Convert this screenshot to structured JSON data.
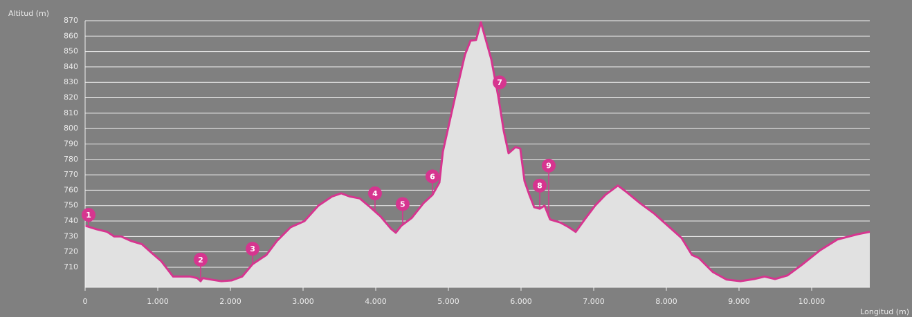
{
  "chart_data": {
    "type": "area",
    "y_label": "Altitud (m)",
    "x_label": "Longitud (m)",
    "xlim": [
      0,
      10800
    ],
    "ylim": [
      697,
      870
    ],
    "xticks": [
      0,
      {
        "value": 1000,
        "label": "1.000"
      },
      {
        "value": 2000,
        "label": "2.000"
      },
      {
        "value": 3000,
        "label": "3.000"
      },
      {
        "value": 4000,
        "label": "4.000"
      },
      {
        "value": 5000,
        "label": "5.000"
      },
      {
        "value": 6000,
        "label": "6.000"
      },
      {
        "value": 7000,
        "label": "7.000"
      },
      {
        "value": 8000,
        "label": "8.000"
      },
      {
        "value": 9000,
        "label": "9.000"
      },
      {
        "value": 10000,
        "label": "10.000"
      }
    ],
    "yticks": [
      710,
      720,
      730,
      740,
      750,
      760,
      770,
      780,
      790,
      800,
      810,
      820,
      830,
      840,
      850,
      860,
      870
    ],
    "grid": true,
    "series": [
      {
        "color": "#d6358f",
        "fill": "#e1e1e1",
        "x": [
          0,
          162,
          305,
          400,
          495,
          638,
          781,
          924,
          1048,
          1162,
          1210,
          1352,
          1448,
          1543,
          1590,
          1619,
          1733,
          1876,
          2019,
          2162,
          2305,
          2495,
          2638,
          2829,
          3019,
          3210,
          3400,
          3524,
          3638,
          3781,
          3924,
          4067,
          4210,
          4276,
          4352,
          4495,
          4657,
          4781,
          4876,
          4924,
          5019,
          5114,
          5229,
          5305,
          5381,
          5448,
          5495,
          5590,
          5686,
          5762,
          5829,
          5924,
          5990,
          6048,
          6114,
          6181,
          6257,
          6324,
          6400,
          6543,
          6657,
          6752,
          6876,
          7019,
          7162,
          7333,
          7448,
          7638,
          7829,
          8019,
          8210,
          8352,
          8448,
          8638,
          8829,
          9019,
          9210,
          9352,
          9495,
          9667,
          9876,
          10114,
          10352,
          10638,
          10800
        ],
        "values": [
          737,
          734.6,
          733,
          730,
          730,
          727,
          725,
          719,
          714,
          707,
          704,
          704,
          704,
          703,
          701,
          703,
          702,
          701,
          701.5,
          704,
          712,
          718,
          727,
          736,
          740,
          750,
          756,
          758,
          756,
          754.7,
          749,
          743,
          735,
          732.4,
          737,
          742,
          751.6,
          757,
          765,
          785,
          805,
          825,
          848,
          857,
          857.5,
          869,
          861,
          845,
          821,
          798.5,
          784,
          788,
          787,
          766,
          757,
          749,
          748,
          750,
          741,
          739,
          736,
          733,
          741,
          750,
          757,
          763,
          759,
          751.6,
          745,
          737,
          729,
          718,
          716,
          707,
          702,
          701,
          702.4,
          704,
          702.4,
          704.7,
          712,
          721,
          728,
          731.5,
          733
        ]
      }
    ],
    "annotations": [
      {
        "label": "1",
        "x": 48,
        "y": 744
      },
      {
        "label": "2",
        "x": 1590,
        "y": 715
      },
      {
        "label": "3",
        "x": 2305,
        "y": 722
      },
      {
        "label": "4",
        "x": 3990,
        "y": 758
      },
      {
        "label": "5",
        "x": 4370,
        "y": 751
      },
      {
        "label": "6",
        "x": 4780,
        "y": 769
      },
      {
        "label": "7",
        "x": 5705,
        "y": 830
      },
      {
        "label": "8",
        "x": 6257,
        "y": 763
      },
      {
        "label": "9",
        "x": 6381,
        "y": 776
      }
    ]
  }
}
